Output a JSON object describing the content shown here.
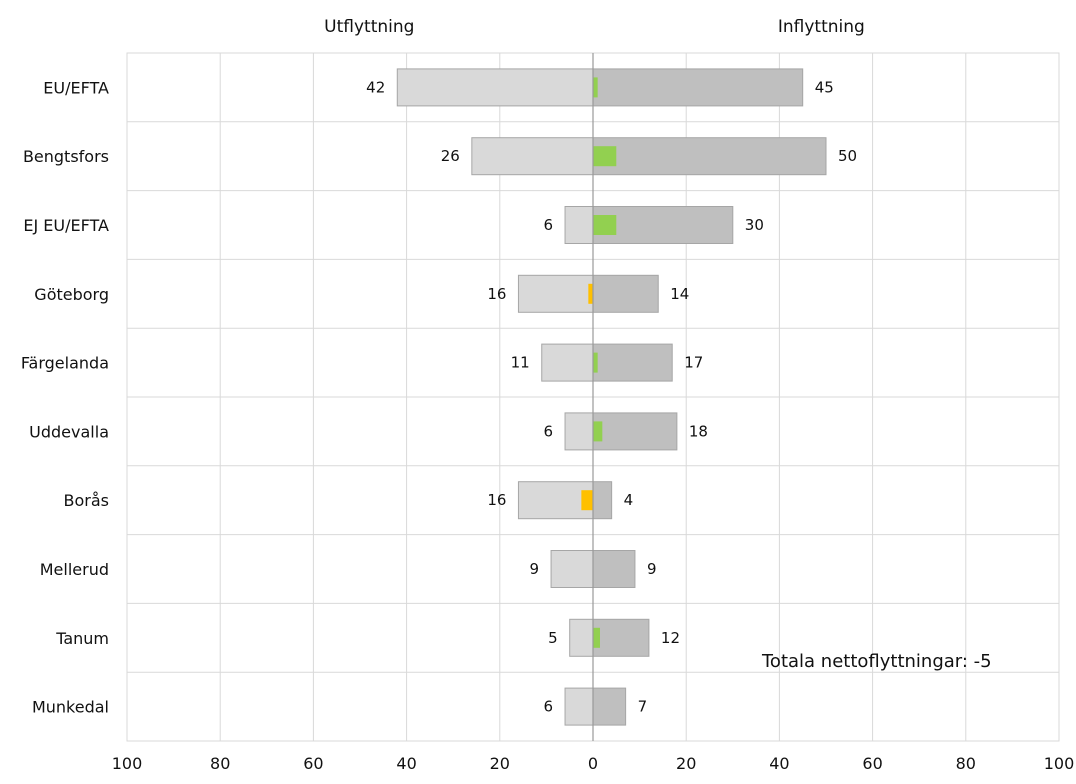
{
  "chart_data": {
    "type": "bar",
    "orientation": "horizontal-diverging",
    "headers": {
      "left": "Utflyttning",
      "right": "Inflyttning"
    },
    "categories": [
      "EU/EFTA",
      "Bengtsfors",
      "EJ EU/EFTA",
      "Göteborg",
      "Färgelanda",
      "Uddevalla",
      "Borås",
      "Mellerud",
      "Tanum",
      "Munkedal"
    ],
    "series": [
      {
        "values": [
          42,
          26,
          6,
          16,
          11,
          6,
          16,
          9,
          5,
          6
        ]
      },
      {
        "values": [
          45,
          50,
          30,
          14,
          17,
          18,
          4,
          9,
          12,
          7
        ]
      },
      {
        "values": [
          1,
          5,
          5,
          -1,
          1,
          2,
          -2.5,
          0,
          1.5,
          0
        ]
      }
    ],
    "xlim": [
      -100,
      100
    ],
    "xticks": [
      100,
      80,
      60,
      40,
      20,
      0,
      20,
      40,
      60,
      80,
      100
    ],
    "grid": true,
    "annotation": "Totala nettoflyttningar: -5",
    "colors": {
      "out": "#d9d9d9",
      "in": "#bfbfbf",
      "net_positive": "#92d050",
      "net_negative": "#ffc000",
      "border": "#a6a6a6",
      "grid": "#d9d9d9"
    }
  }
}
